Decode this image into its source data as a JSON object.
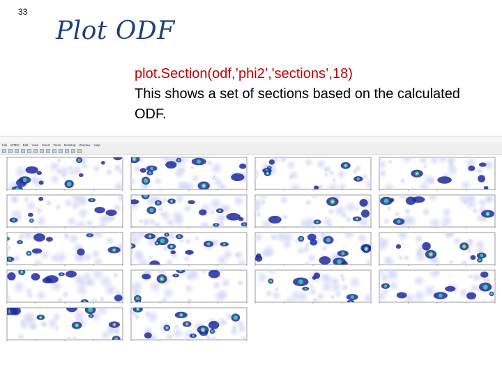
{
  "slide": {
    "number": "33",
    "title": "Plot ODF",
    "code_line": "plot.Section(odf,’phi2’,'sections’,18)",
    "description": "This shows a set of sections based on the calculated ODF."
  },
  "window": {
    "title": "",
    "menu": [
      "File",
      "MTEX",
      "Edit",
      "View",
      "Insert",
      "Tools",
      "Desktop",
      "Window",
      "Help"
    ],
    "toolbar_icons": [
      "new-icon",
      "open-icon",
      "save-icon",
      "print-icon",
      "pointer-icon",
      "zoom-in-icon",
      "zoom-out-icon",
      "pan-icon",
      "rotate-icon",
      "datacursor-icon",
      "brush-icon",
      "colorbar-icon",
      "legend-icon"
    ]
  },
  "figure": {
    "sections_count": 18,
    "columns": 4,
    "colors": {
      "background": "#ffffff",
      "low": "#d6d8f6",
      "mid": "#1e2a9e",
      "high": "#39c7a0",
      "peak": "#f2e93a"
    }
  }
}
